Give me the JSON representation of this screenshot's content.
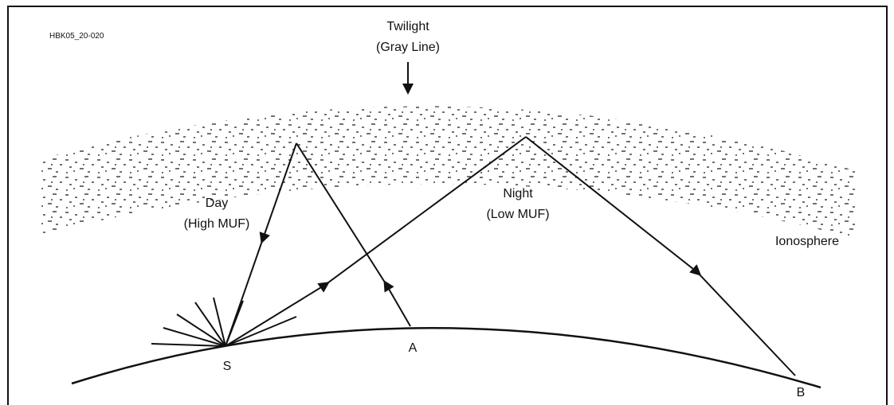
{
  "figure_id": "HBK05_20-020",
  "labels": {
    "twilight": "Twilight",
    "gray_line": "(Gray Line)",
    "day": "Day",
    "high_muf": "(High MUF)",
    "night": "Night",
    "low_muf": "(Low MUF)",
    "ionosphere": "Ionosphere"
  },
  "points": {
    "s": "S",
    "a": "A",
    "b": "B"
  }
}
